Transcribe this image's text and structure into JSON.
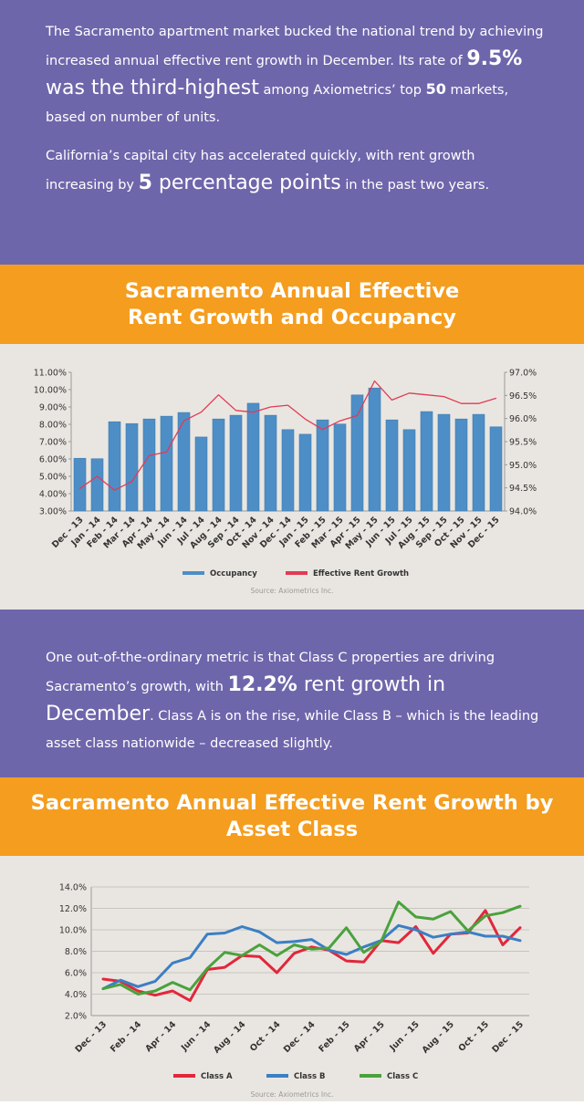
{
  "intro": {
    "paragraphs": [
      [
        {
          "text": "The Sacramento apartment market bucked the national trend by achieving increased annual effective rent growth in December. Its rate of "
        },
        {
          "text": "9.5%",
          "emphasis": "bold-big"
        },
        {
          "text": " was the third-highest",
          "emphasis": "big"
        },
        {
          "text": " among Axiometrics’ top "
        },
        {
          "text": "50",
          "emphasis": "bold"
        },
        {
          "text": " markets, based on number of units."
        }
      ],
      [
        {
          "text": "California’s capital city has accelerated quickly, with rent growth increasing by "
        },
        {
          "text": "5",
          "emphasis": "bold-big"
        },
        {
          "text": " percentage points",
          "emphasis": "big"
        },
        {
          "text": " in the past two years."
        }
      ]
    ]
  },
  "middle": {
    "paragraphs": [
      [
        {
          "text": "One out-of-the-ordinary metric is that Class C properties are driving Sacramento’s growth, with "
        },
        {
          "text": "12.2%",
          "emphasis": "bold-big"
        },
        {
          "text": " rent growth in December",
          "emphasis": "big"
        },
        {
          "text": ". Class A is on the rise, while Class B – which is the leading asset class nationwide – decreased slightly."
        }
      ]
    ]
  },
  "chart_data": [
    {
      "type": "bar",
      "title": "Sacramento Annual Effective Rent Growth and Occupancy",
      "categories": [
        "Dec - 13",
        "Jan - 14",
        "Feb - 14",
        "Mar - 14",
        "Apr - 14",
        "May - 14",
        "Jun - 14",
        "Jul - 14",
        "Aug - 14",
        "Sep - 14",
        "Oct - 14",
        "Nov - 14",
        "Dec - 14",
        "Jan - 15",
        "Feb - 15",
        "Mar - 15",
        "Apr - 15",
        "May - 15",
        "Jun - 15",
        "Jul - 15",
        "Aug - 15",
        "Sep - 15",
        "Oct - 15",
        "Nov - 15",
        "Dec - 15"
      ],
      "series": [
        {
          "name": "Occupancy",
          "type": "bar",
          "axis": "y2",
          "color": "#4e8ec6",
          "values": [
            95.14,
            95.13,
            95.93,
            95.89,
            95.99,
            96.05,
            96.13,
            95.6,
            95.99,
            96.07,
            96.33,
            96.07,
            95.76,
            95.66,
            95.97,
            95.88,
            96.51,
            96.66,
            95.97,
            95.76,
            96.15,
            96.09,
            95.99,
            96.09,
            95.82
          ]
        },
        {
          "name": "Effective Rent Growth",
          "type": "line",
          "color": "#e23a55",
          "values": [
            4.3,
            5.0,
            4.2,
            4.7,
            6.2,
            6.4,
            8.2,
            8.7,
            9.7,
            8.8,
            8.7,
            9.0,
            9.1,
            8.3,
            7.7,
            8.2,
            8.5,
            10.5,
            9.4,
            9.8,
            9.7,
            9.6,
            9.2,
            9.2,
            9.5
          ]
        }
      ],
      "ylim": [
        3,
        11
      ],
      "yticks": [
        {
          "value": 3,
          "label": "3.00%"
        },
        {
          "value": 4,
          "label": "4.00%"
        },
        {
          "value": 5,
          "label": "5.00%"
        },
        {
          "value": 6,
          "label": "6.00%"
        },
        {
          "value": 7,
          "label": "7.00%"
        },
        {
          "value": 8,
          "label": "8.00%"
        },
        {
          "value": 9,
          "label": "9.00%"
        },
        {
          "value": 10,
          "label": "10.00%"
        },
        {
          "value": 11,
          "label": "11.00%"
        }
      ],
      "y2lim": [
        94,
        97
      ],
      "y2ticks": [
        {
          "value": 94,
          "label": "94.0%"
        },
        {
          "value": 94.5,
          "label": "94.5%"
        },
        {
          "value": 95,
          "label": "95.0%"
        },
        {
          "value": 95.5,
          "label": "95.5%"
        },
        {
          "value": 96,
          "label": "96.0%"
        },
        {
          "value": 96.5,
          "label": "96.5%"
        },
        {
          "value": 97,
          "label": "97.0%"
        }
      ],
      "grid": false,
      "legend": "bottom",
      "source": "Source: Axiometrics Inc."
    },
    {
      "type": "line",
      "title": "Sacramento Annual Effective Rent Growth by Asset Class",
      "categories": [
        "Dec - 13",
        null,
        "Feb - 14",
        null,
        "Apr - 14",
        null,
        "Jun - 14",
        null,
        "Aug - 14",
        null,
        "Oct - 14",
        null,
        "Dec - 14",
        null,
        "Feb - 15",
        null,
        "Apr - 15",
        null,
        "Jun - 15",
        null,
        "Aug - 15",
        null,
        "Oct - 15",
        null,
        "Dec - 15"
      ],
      "series": [
        {
          "name": "Class A",
          "color": "#e2273b",
          "values": [
            5.4,
            5.2,
            4.3,
            3.9,
            4.3,
            3.4,
            6.3,
            6.5,
            7.6,
            7.5,
            6.0,
            7.8,
            8.4,
            8.1,
            7.1,
            7.0,
            9.0,
            8.8,
            10.3,
            7.8,
            9.6,
            9.7,
            11.8,
            8.6,
            10.2
          ]
        },
        {
          "name": "Class B",
          "color": "#3b7fc4",
          "values": [
            4.5,
            5.3,
            4.7,
            5.2,
            6.9,
            7.4,
            9.6,
            9.7,
            10.3,
            9.8,
            8.8,
            8.9,
            9.1,
            8.1,
            7.7,
            8.4,
            9.0,
            10.4,
            10.0,
            9.3,
            9.6,
            9.8,
            9.4,
            9.4,
            9.0
          ]
        },
        {
          "name": "Class C",
          "color": "#4aa23c",
          "values": [
            4.5,
            4.9,
            4.0,
            4.3,
            5.1,
            4.4,
            6.4,
            7.9,
            7.6,
            8.6,
            7.6,
            8.6,
            8.2,
            8.3,
            10.2,
            7.9,
            8.9,
            12.6,
            11.2,
            11.0,
            11.7,
            9.9,
            11.3,
            11.6,
            12.2
          ]
        }
      ],
      "ylim": [
        2,
        14
      ],
      "yticks": [
        {
          "value": 2,
          "label": "2.0%"
        },
        {
          "value": 4,
          "label": "4.0%"
        },
        {
          "value": 6,
          "label": "6.0%"
        },
        {
          "value": 8,
          "label": "8.0%"
        },
        {
          "value": 10,
          "label": "10.0%"
        },
        {
          "value": 12,
          "label": "12.0%"
        },
        {
          "value": 14,
          "label": "14.0%"
        }
      ],
      "grid": true,
      "legend": "bottom",
      "source": "Source: Axiometrics Inc."
    }
  ]
}
